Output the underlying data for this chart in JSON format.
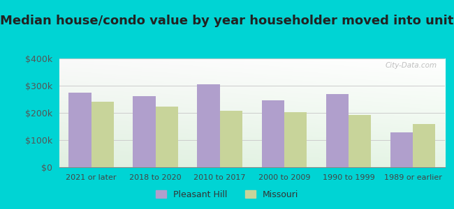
{
  "title": "Median house/condo value by year householder moved into unit",
  "categories": [
    "2021 or later",
    "2018 to 2020",
    "2010 to 2017",
    "2000 to 2009",
    "1990 to 1999",
    "1989 or earlier"
  ],
  "pleasant_hill": [
    275000,
    262000,
    305000,
    247000,
    270000,
    127000
  ],
  "missouri": [
    240000,
    222000,
    208000,
    202000,
    192000,
    160000
  ],
  "pleasant_hill_color": "#b09fcc",
  "missouri_color": "#c8d49a",
  "bar_width": 0.35,
  "ylim": [
    0,
    400000
  ],
  "yticks": [
    0,
    100000,
    200000,
    300000,
    400000
  ],
  "ytick_labels": [
    "$0",
    "$100k",
    "$200k",
    "$300k",
    "$400k"
  ],
  "background_outer": "#00d4d4",
  "grid_color": "#cccccc",
  "title_fontsize": 13,
  "axis_label_fontsize": 9,
  "xtick_fontsize": 8,
  "legend_labels": [
    "Pleasant Hill",
    "Missouri"
  ],
  "watermark": "City-Data.com"
}
